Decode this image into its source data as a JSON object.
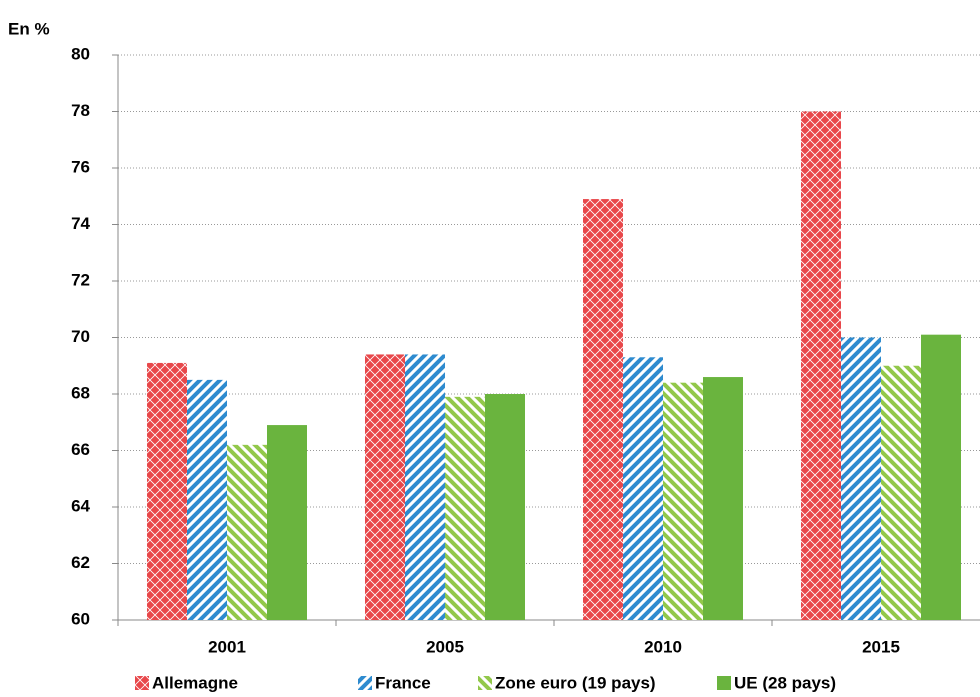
{
  "chart_data": {
    "type": "bar",
    "y_axis_label": "En %",
    "categories": [
      "2001",
      "2005",
      "2010",
      "2015"
    ],
    "series": [
      {
        "name": "Allemagne",
        "color": "#e8474a",
        "pattern": "crosshatch",
        "values": [
          69.1,
          69.4,
          74.9,
          78.0
        ]
      },
      {
        "name": "France",
        "color": "#2e8bcf",
        "pattern": "forward-stripes",
        "values": [
          68.5,
          69.4,
          69.3,
          70.0
        ]
      },
      {
        "name": "Zone euro (19 pays)",
        "color": "#92c84a",
        "pattern": "back-stripes",
        "values": [
          66.2,
          67.9,
          68.4,
          69.0
        ]
      },
      {
        "name": "UE (28 pays)",
        "color": "#6ab43e",
        "pattern": "solid",
        "values": [
          66.9,
          68.0,
          68.6,
          70.1
        ]
      }
    ],
    "ylim": [
      60,
      80
    ],
    "yticks": [
      60,
      62,
      64,
      66,
      68,
      70,
      72,
      74,
      76,
      78,
      80
    ],
    "grid": true
  }
}
